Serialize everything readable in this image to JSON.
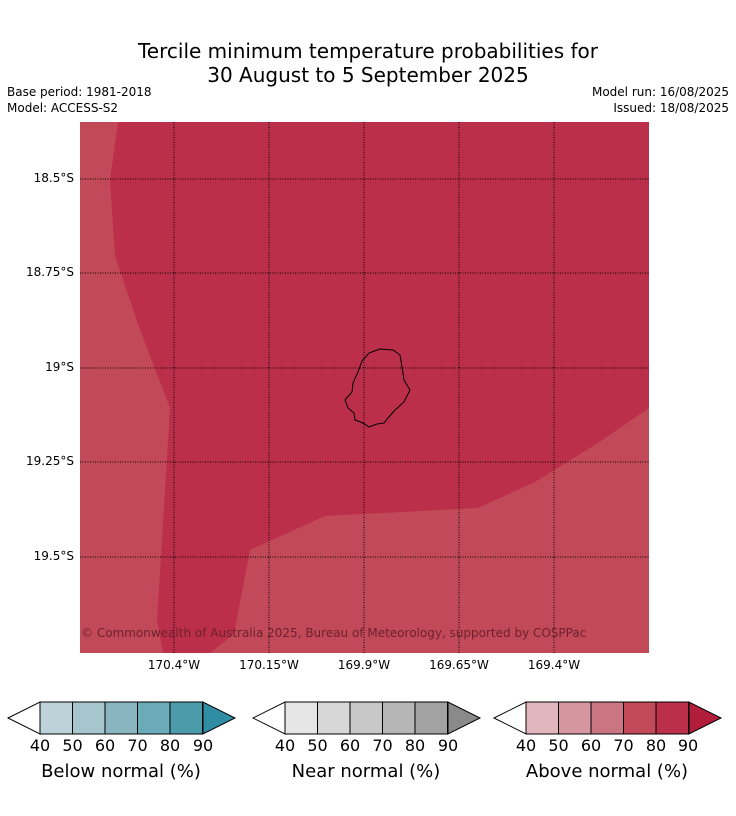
{
  "title_line1": "Tercile minimum temperature probabilities for",
  "title_line2": "30 August to 5 September 2025",
  "base_period": "Base period: 1981-2018",
  "model": "Model: ACCESS-S2",
  "model_run": "Model run: 16/08/2025",
  "issued": "Issued: 18/08/2025",
  "map": {
    "lat_labels": [
      "18.5°S",
      "18.75°S",
      "19°S",
      "19.25°S",
      "19.5°S"
    ],
    "lon_labels": [
      "170.4°W",
      "170.15°W",
      "169.9°W",
      "169.65°W",
      "169.4°W"
    ],
    "copyright": "© Commonwealth of Australia 2025, Bureau of Meteorology, supported by COSPPac",
    "colors": {
      "above_70_80": "#c24a58",
      "above_80_90": "#bc2f4b",
      "land_outline": "#000000"
    }
  },
  "colorbars": [
    {
      "label": "Below normal (%)",
      "ticks": [
        "40",
        "50",
        "60",
        "70",
        "80",
        "90"
      ],
      "colors": [
        "#bed3d9",
        "#a5c6cc",
        "#88b5c0",
        "#6aaab9",
        "#4b9bab",
        "#2f8ea3"
      ]
    },
    {
      "label": "Near normal (%)",
      "ticks": [
        "40",
        "50",
        "60",
        "70",
        "80",
        "90"
      ],
      "colors": [
        "#e6e6e6",
        "#d7d7d7",
        "#c8c8c8",
        "#b6b6b6",
        "#a2a2a2",
        "#8a8a8a"
      ]
    },
    {
      "label": "Above normal (%)",
      "ticks": [
        "40",
        "50",
        "60",
        "70",
        "80",
        "90"
      ],
      "colors": [
        "#e2b6bd",
        "#d5969f",
        "#cb7582",
        "#c24a58",
        "#bc2f4b",
        "#b01e3c"
      ]
    }
  ]
}
